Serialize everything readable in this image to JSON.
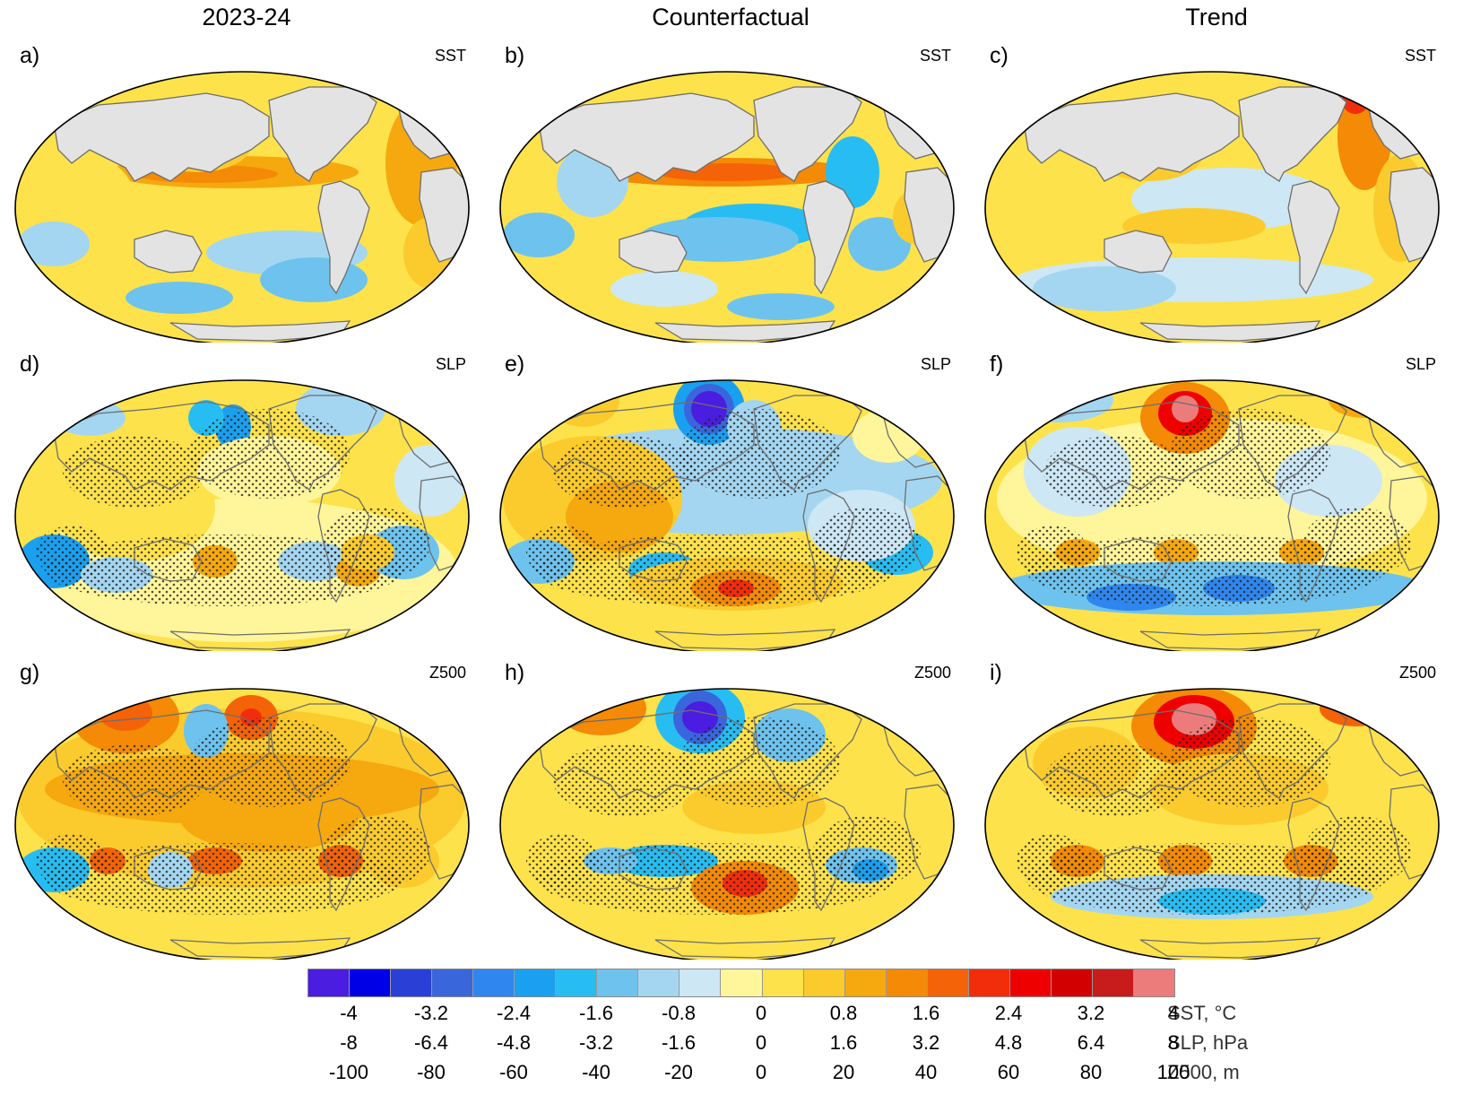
{
  "columns": [
    {
      "title": "2023-24"
    },
    {
      "title": "Counterfactual"
    },
    {
      "title": "Trend"
    }
  ],
  "panels": [
    {
      "label": "a)",
      "variable": "SST"
    },
    {
      "label": "b)",
      "variable": "SST"
    },
    {
      "label": "c)",
      "variable": "SST"
    },
    {
      "label": "d)",
      "variable": "SLP"
    },
    {
      "label": "e)",
      "variable": "SLP"
    },
    {
      "label": "f)",
      "variable": "SLP"
    },
    {
      "label": "g)",
      "variable": "Z500"
    },
    {
      "label": "h)",
      "variable": "Z500"
    },
    {
      "label": "i)",
      "variable": "Z500"
    }
  ],
  "colors": {
    "levels": [
      "#4b1de0",
      "#0000e6",
      "#2a3fd6",
      "#3a66dc",
      "#2f86ee",
      "#1aa0f0",
      "#27bdf2",
      "#6ec3ee",
      "#a4d6f1",
      "#cde7f4",
      "#fff59a",
      "#fde24b",
      "#fbcb2d",
      "#f6a80f",
      "#f48a05",
      "#f46308",
      "#f22d0c",
      "#ef0000",
      "#d20000",
      "#c81b1b",
      "#ec7c7c"
    ],
    "land": "#e3e3e3",
    "coast": "#6e6e6e"
  },
  "colorbar": {
    "rows": [
      {
        "ticks": [
          "-4",
          "-3.2",
          "-2.4",
          "-1.6",
          "-0.8",
          "0",
          "0.8",
          "1.6",
          "2.4",
          "3.2",
          "4"
        ],
        "unit": "SST, °C"
      },
      {
        "ticks": [
          "-8",
          "-6.4",
          "-4.8",
          "-3.2",
          "-1.6",
          "0",
          "1.6",
          "3.2",
          "4.8",
          "6.4",
          "8"
        ],
        "unit": "SLP, hPa"
      },
      {
        "ticks": [
          "-100",
          "-80",
          "-60",
          "-40",
          "-20",
          "0",
          "20",
          "40",
          "60",
          "80",
          "100"
        ],
        "unit": "Z500, m"
      }
    ]
  }
}
